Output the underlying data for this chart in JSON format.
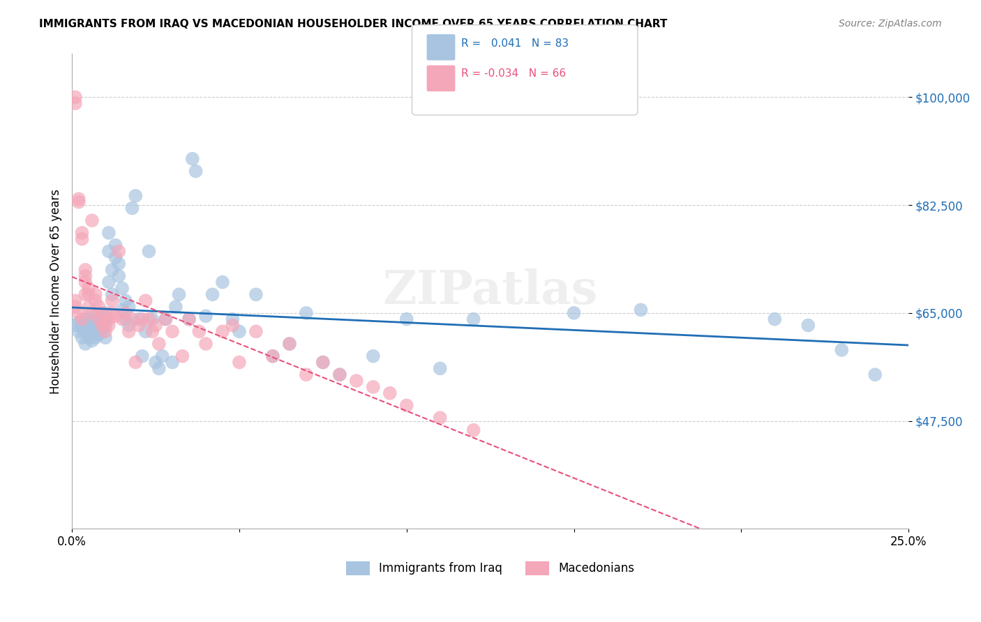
{
  "title": "IMMIGRANTS FROM IRAQ VS MACEDONIAN HOUSEHOLDER INCOME OVER 65 YEARS CORRELATION CHART",
  "source": "Source: ZipAtlas.com",
  "xlabel": "",
  "ylabel": "Householder Income Over 65 years",
  "xlim": [
    0.0,
    0.25
  ],
  "ylim": [
    30000,
    107000
  ],
  "yticks": [
    47500,
    65000,
    82500,
    100000
  ],
  "ytick_labels": [
    "$47,500",
    "$65,000",
    "$82,500",
    "$100,000"
  ],
  "xticks": [
    0.0,
    0.05,
    0.1,
    0.15,
    0.2,
    0.25
  ],
  "xtick_labels": [
    "0.0%",
    "",
    "",
    "",
    "",
    "25.0%"
  ],
  "legend_r1": "R =   0.041   N = 83",
  "legend_r2": "R = -0.034   N = 66",
  "r_iraq": 0.041,
  "n_iraq": 83,
  "r_mac": -0.034,
  "n_mac": 66,
  "color_iraq": "#a8c4e0",
  "color_mac": "#f4a7b9",
  "line_color_iraq": "#1f6eb5",
  "line_color_mac": "#e8507a",
  "watermark": "ZIPatlas",
  "iraq_x": [
    0.001,
    0.002,
    0.002,
    0.003,
    0.003,
    0.003,
    0.004,
    0.004,
    0.004,
    0.004,
    0.005,
    0.005,
    0.005,
    0.005,
    0.006,
    0.006,
    0.006,
    0.007,
    0.007,
    0.007,
    0.007,
    0.008,
    0.008,
    0.008,
    0.009,
    0.009,
    0.009,
    0.01,
    0.01,
    0.01,
    0.011,
    0.011,
    0.011,
    0.012,
    0.012,
    0.013,
    0.013,
    0.014,
    0.014,
    0.015,
    0.015,
    0.016,
    0.016,
    0.017,
    0.017,
    0.018,
    0.019,
    0.02,
    0.021,
    0.022,
    0.023,
    0.024,
    0.025,
    0.026,
    0.027,
    0.028,
    0.03,
    0.031,
    0.032,
    0.035,
    0.036,
    0.037,
    0.04,
    0.042,
    0.045,
    0.048,
    0.05,
    0.055,
    0.06,
    0.065,
    0.07,
    0.075,
    0.08,
    0.09,
    0.1,
    0.11,
    0.12,
    0.15,
    0.17,
    0.21,
    0.22,
    0.23,
    0.24
  ],
  "iraq_y": [
    63000,
    62000,
    63500,
    61000,
    62500,
    63000,
    60000,
    62000,
    63500,
    64000,
    61000,
    62000,
    63000,
    64000,
    60500,
    62000,
    63500,
    61000,
    62500,
    63000,
    64500,
    61500,
    63000,
    64000,
    62000,
    63500,
    65000,
    61000,
    63000,
    65000,
    75000,
    78000,
    70000,
    72000,
    68000,
    76000,
    74000,
    71000,
    73000,
    69000,
    65500,
    67000,
    64000,
    66000,
    63000,
    82000,
    84000,
    64000,
    58000,
    62000,
    75000,
    64000,
    57000,
    56000,
    58000,
    64000,
    57000,
    66000,
    68000,
    64000,
    90000,
    88000,
    64500,
    68000,
    70000,
    64000,
    62000,
    68000,
    58000,
    60000,
    65000,
    57000,
    55000,
    58000,
    64000,
    56000,
    64000,
    65000,
    65500,
    64000,
    63000,
    59000,
    55000
  ],
  "mac_x": [
    0.001,
    0.001,
    0.001,
    0.001,
    0.002,
    0.002,
    0.002,
    0.003,
    0.003,
    0.003,
    0.004,
    0.004,
    0.004,
    0.004,
    0.005,
    0.005,
    0.005,
    0.006,
    0.006,
    0.007,
    0.007,
    0.008,
    0.008,
    0.009,
    0.009,
    0.01,
    0.01,
    0.011,
    0.011,
    0.012,
    0.012,
    0.013,
    0.014,
    0.015,
    0.016,
    0.017,
    0.018,
    0.019,
    0.02,
    0.021,
    0.022,
    0.023,
    0.024,
    0.025,
    0.026,
    0.028,
    0.03,
    0.033,
    0.035,
    0.038,
    0.04,
    0.045,
    0.048,
    0.05,
    0.055,
    0.06,
    0.065,
    0.07,
    0.075,
    0.08,
    0.085,
    0.09,
    0.095,
    0.1,
    0.11,
    0.12
  ],
  "mac_y": [
    100000,
    99000,
    67000,
    66000,
    83000,
    83500,
    65000,
    78000,
    77000,
    64000,
    72000,
    71000,
    70000,
    68000,
    69000,
    68000,
    66000,
    80000,
    65000,
    68000,
    67000,
    66000,
    64000,
    65000,
    63000,
    63500,
    62000,
    64000,
    63000,
    67000,
    65000,
    64500,
    75000,
    64000,
    65000,
    62000,
    64000,
    57000,
    63000,
    64000,
    67000,
    64000,
    62000,
    63000,
    60000,
    64000,
    62000,
    58000,
    64000,
    62000,
    60000,
    62000,
    63000,
    57000,
    62000,
    58000,
    60000,
    55000,
    57000,
    55000,
    54000,
    53000,
    52000,
    50000,
    48000,
    46000
  ]
}
